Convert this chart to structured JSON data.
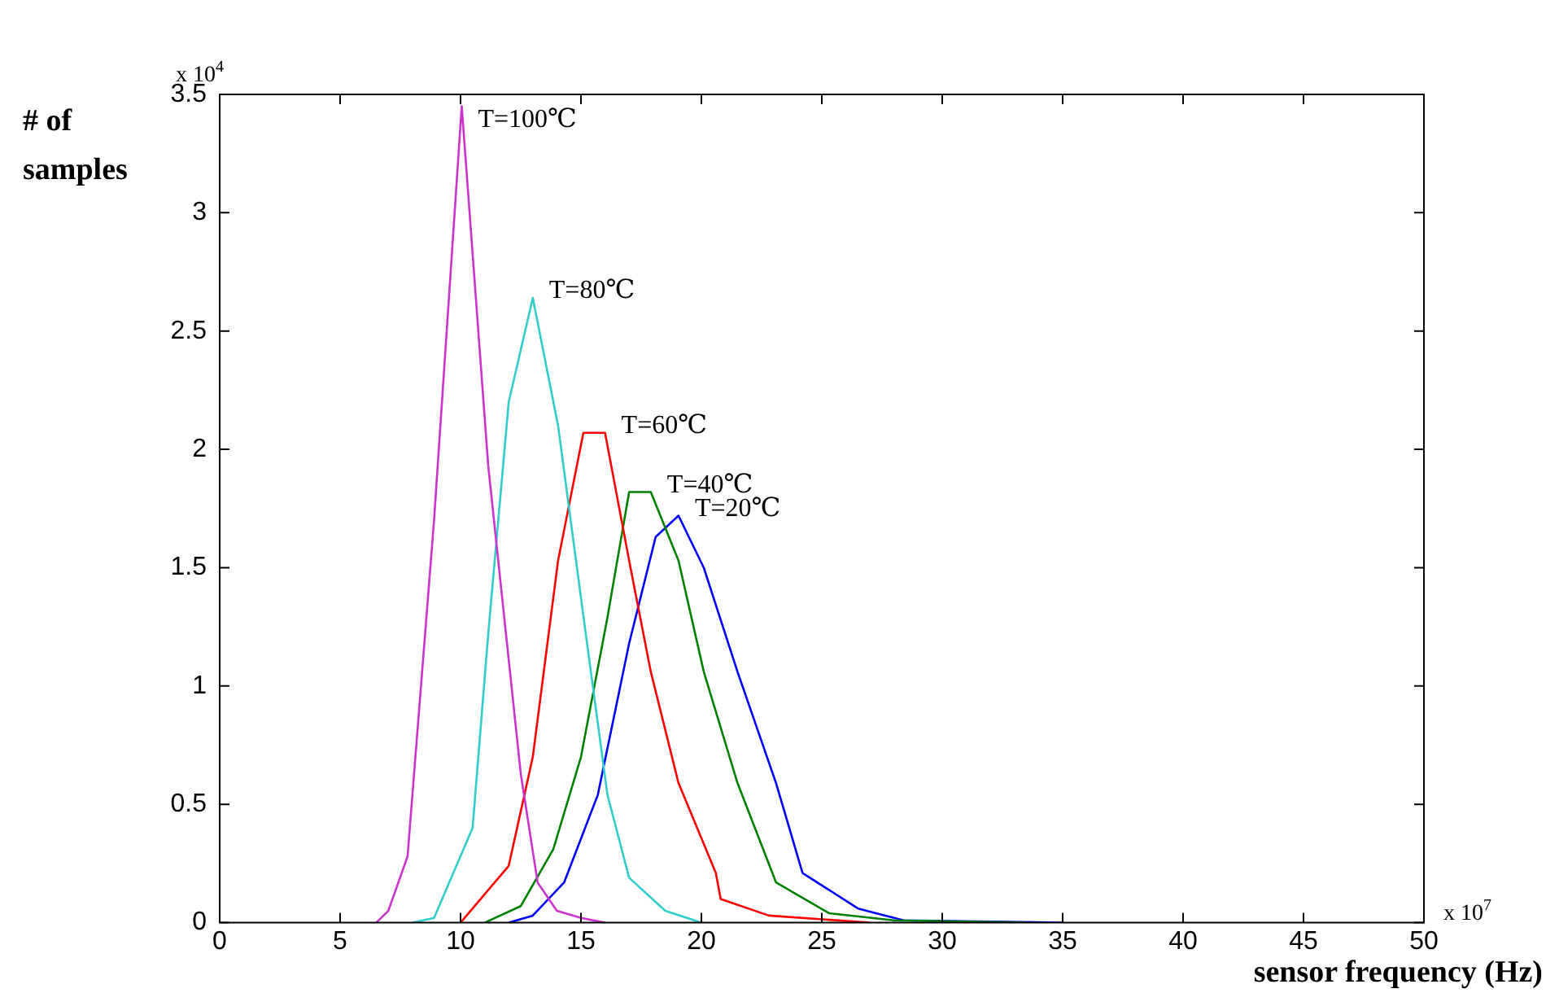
{
  "chart_data": {
    "type": "line",
    "xlabel": "sensor frequency (Hz)",
    "ylabel": "# of samples",
    "xlim": [
      0,
      50
    ],
    "xticks": [
      0,
      5,
      10,
      15,
      20,
      25,
      30,
      35,
      40,
      45,
      50
    ],
    "ylim": [
      0,
      3.5
    ],
    "yticks": [
      0,
      0.5,
      1,
      1.5,
      2,
      2.5,
      3,
      3.5
    ],
    "grid": false,
    "legend": false,
    "marker": "none",
    "line_style": "solid",
    "annotations": [
      "x 10$^{4}$",
      "x 10$^{7}$"
    ],
    "series": [
      {
        "name": "T=100℃",
        "color": "#cc33cc",
        "x": [
          6.5,
          7,
          7.8,
          8.9,
          10.05,
          11.15,
          12.5,
          13.2,
          14,
          15,
          16
        ],
        "values": [
          0,
          0.05,
          0.28,
          1.7,
          3.45,
          1.93,
          0.63,
          0.17,
          0.05,
          0.02,
          0
        ]
      },
      {
        "name": "T=80℃",
        "color": "#33cccc",
        "x": [
          8,
          8.9,
          10.5,
          11.15,
          12,
          13,
          14.05,
          15.2,
          16.1,
          17,
          18.5,
          20
        ],
        "values": [
          0,
          0.02,
          0.4,
          1.22,
          2.2,
          2.64,
          2.1,
          1.22,
          0.54,
          0.19,
          0.05,
          0
        ]
      },
      {
        "name": "T=60℃",
        "color": "#ff0000",
        "x": [
          10,
          12,
          13,
          14.05,
          15.1,
          16,
          17,
          17.9,
          19.05,
          20.6,
          20.8,
          22.8,
          27
        ],
        "values": [
          0,
          0.24,
          0.7,
          1.53,
          2.07,
          2.07,
          1.53,
          1.06,
          0.59,
          0.21,
          0.1,
          0.03,
          0
        ]
      },
      {
        "name": "T=40℃",
        "color": "#008000",
        "x": [
          11,
          12.5,
          13.85,
          15,
          16.1,
          17,
          17.9,
          19.05,
          20.1,
          21.5,
          23.1,
          25.3,
          28,
          33.5
        ],
        "values": [
          0,
          0.07,
          0.31,
          0.7,
          1.29,
          1.82,
          1.82,
          1.53,
          1.06,
          0.59,
          0.17,
          0.04,
          0.01,
          0
        ]
      },
      {
        "name": "T=20℃",
        "color": "#0000ff",
        "x": [
          12,
          13,
          14.3,
          15.7,
          17,
          18.1,
          19.05,
          20.1,
          21.5,
          23.1,
          24.2,
          26.5,
          28.4,
          35
        ],
        "values": [
          0,
          0.03,
          0.17,
          0.54,
          1.18,
          1.63,
          1.72,
          1.5,
          1.06,
          0.59,
          0.21,
          0.06,
          0.01,
          0
        ]
      }
    ]
  }
}
